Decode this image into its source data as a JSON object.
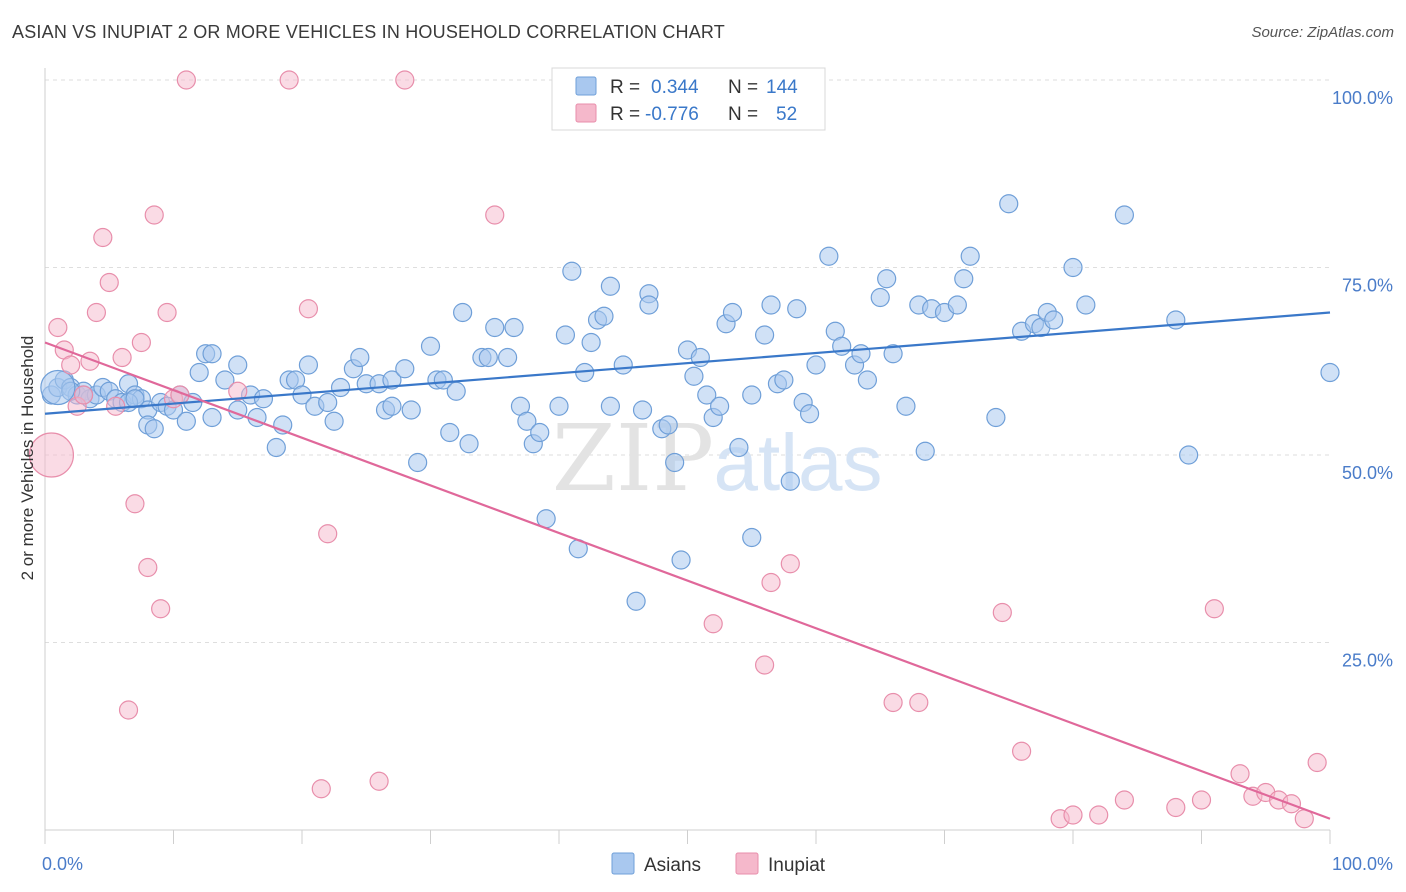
{
  "title": "ASIAN VS INUPIAT 2 OR MORE VEHICLES IN HOUSEHOLD CORRELATION CHART",
  "source": "Source: ZipAtlas.com",
  "watermark": {
    "zip": "ZIP",
    "atlas": "atlas"
  },
  "legend": {
    "rows": [
      {
        "r_label": "R =",
        "r_value": "0.344",
        "n_label": "N =",
        "n_value": "144"
      },
      {
        "r_label": "R =",
        "r_value": "-0.776",
        "n_label": "N =",
        "n_value": "52"
      }
    ]
  },
  "bottom_legend": [
    "Asians",
    "Inupiat"
  ],
  "chart_data": {
    "type": "scatter",
    "ylabel": "2 or more Vehicles in Household",
    "xlabel": "",
    "x_tick_labels": [
      "0.0%",
      "100.0%"
    ],
    "y_tick_labels": [
      "100.0%",
      "75.0%",
      "50.0%",
      "25.0%"
    ],
    "y_ticks": [
      100,
      75,
      50,
      25
    ],
    "xlim": [
      0,
      100
    ],
    "ylim": [
      0,
      100
    ],
    "grid": true,
    "colors": {
      "asians": "#a9c8ef",
      "asians_stroke": "#6f9fd8",
      "asians_line": "#3a78c9",
      "inupiat": "#f5b8cb",
      "inupiat_stroke": "#e88eab",
      "inupiat_line": "#e0689a"
    },
    "series": [
      {
        "name": "Asians",
        "r": 0.344,
        "n": 144,
        "trend": {
          "x": [
            0,
            100
          ],
          "y": [
            55.5,
            69.0
          ]
        },
        "points": [
          [
            0.5,
            58
          ],
          [
            1,
            59
          ],
          [
            1.5,
            60
          ],
          [
            2,
            59
          ],
          [
            2.5,
            58
          ],
          [
            3,
            58.5
          ],
          [
            3.5,
            57.5
          ],
          [
            4,
            58
          ],
          [
            4.5,
            59
          ],
          [
            5,
            58.5
          ],
          [
            5.5,
            57.5
          ],
          [
            6,
            57
          ],
          [
            6.5,
            59.5
          ],
          [
            7,
            58
          ],
          [
            7.5,
            57.5
          ],
          [
            8,
            56
          ],
          [
            8,
            54
          ],
          [
            8.5,
            53.5
          ],
          [
            9,
            57
          ],
          [
            9.5,
            56.5
          ],
          [
            10,
            56
          ],
          [
            10.5,
            58
          ],
          [
            11,
            54.5
          ],
          [
            11.5,
            57
          ],
          [
            12,
            61
          ],
          [
            12.5,
            63.5
          ],
          [
            13,
            55
          ],
          [
            14,
            60
          ],
          [
            15,
            56
          ],
          [
            15,
            62
          ],
          [
            16,
            58
          ],
          [
            16.5,
            55
          ],
          [
            17,
            57.5
          ],
          [
            18,
            51
          ],
          [
            18.5,
            54
          ],
          [
            19,
            60
          ],
          [
            19.5,
            60
          ],
          [
            20,
            58
          ],
          [
            20.5,
            62
          ],
          [
            21,
            56.5
          ],
          [
            22,
            57
          ],
          [
            22.5,
            54.5
          ],
          [
            23,
            59
          ],
          [
            24,
            61.5
          ],
          [
            24.5,
            63
          ],
          [
            25,
            59.5
          ],
          [
            26,
            59.5
          ],
          [
            26.5,
            56
          ],
          [
            27,
            60
          ],
          [
            27,
            56.5
          ],
          [
            28,
            61.5
          ],
          [
            28.5,
            56
          ],
          [
            29,
            49
          ],
          [
            30,
            64.5
          ],
          [
            30.5,
            60
          ],
          [
            31,
            60
          ],
          [
            31.5,
            53
          ],
          [
            32,
            58.5
          ],
          [
            32.5,
            69
          ],
          [
            33,
            51.5
          ],
          [
            34,
            63
          ],
          [
            34.5,
            63
          ],
          [
            35,
            67
          ],
          [
            36,
            63
          ],
          [
            36.5,
            67
          ],
          [
            37,
            56.5
          ],
          [
            37.5,
            54.5
          ],
          [
            38,
            51.5
          ],
          [
            38.5,
            53
          ],
          [
            39,
            41.5
          ],
          [
            40,
            56.5
          ],
          [
            40.5,
            66
          ],
          [
            41,
            74.5
          ],
          [
            41.5,
            37.5
          ],
          [
            42,
            61
          ],
          [
            42.5,
            65
          ],
          [
            43,
            68
          ],
          [
            43.5,
            68.5
          ],
          [
            44,
            72.5
          ],
          [
            44,
            56.5
          ],
          [
            45,
            62
          ],
          [
            46,
            30.5
          ],
          [
            46.5,
            56
          ],
          [
            47,
            71.5
          ],
          [
            47,
            70
          ],
          [
            48,
            53.5
          ],
          [
            48.5,
            54
          ],
          [
            49,
            49
          ],
          [
            49.5,
            36
          ],
          [
            50,
            64
          ],
          [
            50.5,
            60.5
          ],
          [
            51,
            63
          ],
          [
            51.5,
            58
          ],
          [
            52,
            55
          ],
          [
            52.5,
            56.5
          ],
          [
            53,
            67.5
          ],
          [
            53.5,
            69
          ],
          [
            54,
            51
          ],
          [
            55,
            39
          ],
          [
            55,
            58
          ],
          [
            56,
            66
          ],
          [
            56.5,
            70
          ],
          [
            57,
            59.5
          ],
          [
            57.5,
            60
          ],
          [
            58,
            46.5
          ],
          [
            58.5,
            69.5
          ],
          [
            59,
            57
          ],
          [
            59.5,
            55.5
          ],
          [
            60,
            62
          ],
          [
            61,
            76.5
          ],
          [
            61.5,
            66.5
          ],
          [
            62,
            64.5
          ],
          [
            63,
            62
          ],
          [
            63.5,
            63.5
          ],
          [
            64,
            60
          ],
          [
            65,
            71
          ],
          [
            65.5,
            73.5
          ],
          [
            66,
            63.5
          ],
          [
            67,
            56.5
          ],
          [
            68,
            70
          ],
          [
            68.5,
            50.5
          ],
          [
            69,
            69.5
          ],
          [
            70,
            69
          ],
          [
            71,
            70
          ],
          [
            71.5,
            73.5
          ],
          [
            72,
            76.5
          ],
          [
            74,
            55
          ],
          [
            75,
            83.5
          ],
          [
            76,
            66.5
          ],
          [
            77,
            67.5
          ],
          [
            77.5,
            67
          ],
          [
            78,
            69
          ],
          [
            78.5,
            68
          ],
          [
            80,
            75
          ],
          [
            81,
            70
          ],
          [
            84,
            82
          ],
          [
            88,
            68
          ],
          [
            89,
            50
          ],
          [
            100,
            61
          ],
          [
            13,
            63.5
          ],
          [
            3,
            58
          ],
          [
            2,
            58.5
          ],
          [
            6.5,
            57
          ],
          [
            7,
            57.5
          ]
        ],
        "big_point": [
          1,
          59
        ]
      },
      {
        "name": "Inupiat",
        "r": -0.776,
        "n": 52,
        "trend": {
          "x": [
            0,
            100
          ],
          "y": [
            65.0,
            1.5
          ]
        },
        "points": [
          [
            0.5,
            50
          ],
          [
            1,
            67
          ],
          [
            1.5,
            64
          ],
          [
            2,
            62
          ],
          [
            2.5,
            56.5
          ],
          [
            3,
            58
          ],
          [
            3.5,
            62.5
          ],
          [
            4,
            69
          ],
          [
            4.5,
            79
          ],
          [
            5,
            73
          ],
          [
            5.5,
            56.5
          ],
          [
            6,
            63
          ],
          [
            6.5,
            16
          ],
          [
            7,
            43.5
          ],
          [
            7.5,
            65
          ],
          [
            8,
            35
          ],
          [
            8.5,
            82
          ],
          [
            9,
            29.5
          ],
          [
            9.5,
            69
          ],
          [
            10,
            57.5
          ],
          [
            10.5,
            58
          ],
          [
            15,
            58.5
          ],
          [
            11,
            100
          ],
          [
            19,
            100
          ],
          [
            28,
            100
          ],
          [
            20.5,
            69.5
          ],
          [
            21.5,
            5.5
          ],
          [
            22,
            39.5
          ],
          [
            26,
            6.5
          ],
          [
            35,
            82
          ],
          [
            52,
            27.5
          ],
          [
            56,
            22
          ],
          [
            56.5,
            33
          ],
          [
            58,
            35.5
          ],
          [
            66,
            17
          ],
          [
            68,
            17
          ],
          [
            74.5,
            29
          ],
          [
            76,
            10.5
          ],
          [
            79,
            1.5
          ],
          [
            80,
            2
          ],
          [
            82,
            2
          ],
          [
            84,
            4
          ],
          [
            88,
            3
          ],
          [
            90,
            4
          ],
          [
            91,
            29.5
          ],
          [
            93,
            7.5
          ],
          [
            94,
            4.5
          ],
          [
            95,
            5
          ],
          [
            96,
            4
          ],
          [
            97,
            3.5
          ],
          [
            98,
            1.5
          ],
          [
            99,
            9
          ]
        ]
      }
    ]
  }
}
